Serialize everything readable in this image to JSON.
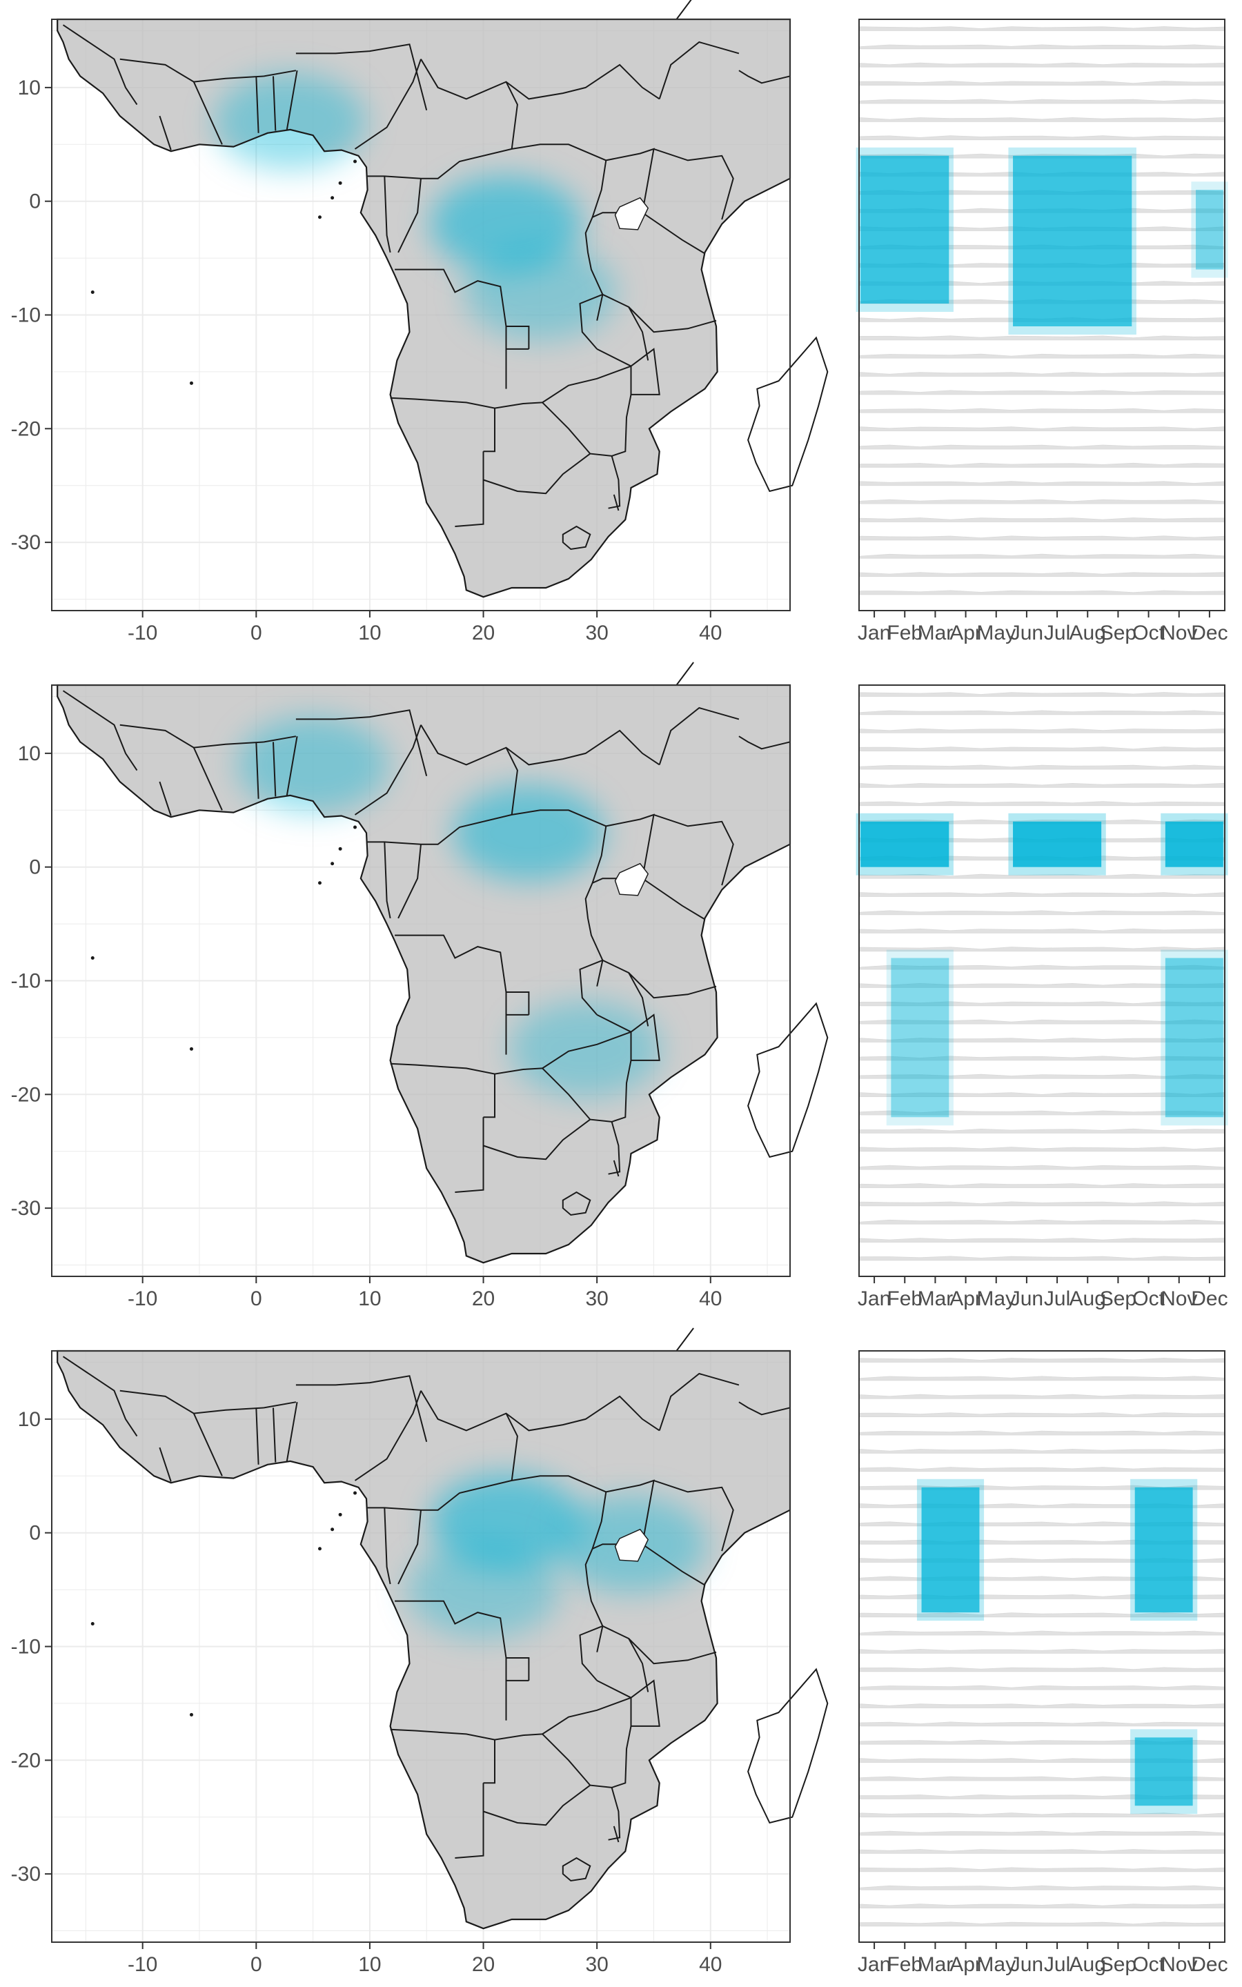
{
  "colors": {
    "accent": "#00b4d8",
    "land": "#bdbdbd",
    "border": "#1a1a1a",
    "grid": "#ebebeb",
    "panel_border": "#333333"
  },
  "chart_data": [
    {
      "type": "heatmap",
      "panel": "map",
      "row": 1,
      "xlim": [
        -18,
        47
      ],
      "ylim": [
        -36,
        16
      ],
      "x_ticks": [
        -10,
        0,
        10,
        20,
        30,
        40
      ],
      "y_ticks": [
        10,
        0,
        -10,
        -20,
        -30
      ],
      "x_tick_labels": [
        "-10",
        "0",
        "10",
        "20",
        "30",
        "40"
      ],
      "y_tick_labels": [
        "10",
        "0",
        "-10",
        "-20",
        "-30"
      ],
      "highlight_regions": [
        {
          "lon": 22,
          "lat": -2,
          "intensity": 0.55
        },
        {
          "lon": 3,
          "lat": 7,
          "intensity": 0.4
        },
        {
          "lon": 25,
          "lat": -8,
          "intensity": 0.35
        }
      ]
    },
    {
      "type": "heatmap",
      "panel": "season",
      "row": 1,
      "categories": [
        "Jan",
        "Feb",
        "Mar",
        "Apr",
        "May",
        "Jun",
        "Jul",
        "Aug",
        "Sep",
        "Oct",
        "Nov",
        "Dec"
      ],
      "ylim": [
        -36,
        16
      ],
      "high_cells": [
        {
          "month_start": 1,
          "month_end": 3,
          "lat_min": -9,
          "lat_max": 4,
          "intensity": 0.7
        },
        {
          "month_start": 6,
          "month_end": 9,
          "lat_min": -11,
          "lat_max": 4,
          "intensity": 0.7
        },
        {
          "month_start": 12,
          "month_end": 12,
          "lat_min": -6,
          "lat_max": 1,
          "intensity": 0.45
        }
      ]
    },
    {
      "type": "heatmap",
      "panel": "map",
      "row": 2,
      "xlim": [
        -18,
        47
      ],
      "ylim": [
        -36,
        16
      ],
      "x_ticks": [
        -10,
        0,
        10,
        20,
        30,
        40
      ],
      "y_ticks": [
        10,
        0,
        -10,
        -20,
        -30
      ],
      "x_tick_labels": [
        "-10",
        "0",
        "10",
        "20",
        "30",
        "40"
      ],
      "y_tick_labels": [
        "10",
        "0",
        "-10",
        "-20",
        "-30"
      ],
      "highlight_regions": [
        {
          "lon": 24,
          "lat": 3,
          "intensity": 0.5
        },
        {
          "lon": 5,
          "lat": 9,
          "intensity": 0.4
        },
        {
          "lon": 29,
          "lat": -16,
          "intensity": 0.35
        }
      ]
    },
    {
      "type": "heatmap",
      "panel": "season",
      "row": 2,
      "categories": [
        "Jan",
        "Feb",
        "Mar",
        "Apr",
        "May",
        "Jun",
        "Jul",
        "Aug",
        "Sep",
        "Oct",
        "Nov",
        "Dec"
      ],
      "ylim": [
        -36,
        16
      ],
      "high_cells": [
        {
          "month_start": 1,
          "month_end": 3,
          "lat_min": 0,
          "lat_max": 4,
          "intensity": 0.85
        },
        {
          "month_start": 6,
          "month_end": 8,
          "lat_min": 0,
          "lat_max": 4,
          "intensity": 0.85
        },
        {
          "month_start": 11,
          "month_end": 12,
          "lat_min": 0,
          "lat_max": 4,
          "intensity": 0.85
        },
        {
          "month_start": 2,
          "month_end": 3,
          "lat_min": -22,
          "lat_max": -8,
          "intensity": 0.4
        },
        {
          "month_start": 11,
          "month_end": 12,
          "lat_min": -22,
          "lat_max": -8,
          "intensity": 0.5
        }
      ]
    },
    {
      "type": "heatmap",
      "panel": "map",
      "row": 3,
      "xlim": [
        -18,
        47
      ],
      "ylim": [
        -36,
        16
      ],
      "x_ticks": [
        -10,
        0,
        10,
        20,
        30,
        40
      ],
      "y_ticks": [
        10,
        0,
        -10,
        -20,
        -30
      ],
      "x_tick_labels": [
        "-10",
        "0",
        "10",
        "20",
        "30",
        "40"
      ],
      "y_tick_labels": [
        "10",
        "0",
        "-10",
        "-20",
        "-30"
      ],
      "highlight_regions": [
        {
          "lon": 22,
          "lat": 1,
          "intensity": 0.55
        },
        {
          "lon": 33,
          "lat": -1,
          "intensity": 0.4
        },
        {
          "lon": 20,
          "lat": -5,
          "intensity": 0.35
        }
      ]
    },
    {
      "type": "heatmap",
      "panel": "season",
      "row": 3,
      "categories": [
        "Jan",
        "Feb",
        "Mar",
        "Apr",
        "May",
        "Jun",
        "Jul",
        "Aug",
        "Sep",
        "Oct",
        "Nov",
        "Dec"
      ],
      "ylim": [
        -36,
        16
      ],
      "high_cells": [
        {
          "month_start": 3,
          "month_end": 4,
          "lat_min": -7,
          "lat_max": 4,
          "intensity": 0.75
        },
        {
          "month_start": 10,
          "month_end": 11,
          "lat_min": -7,
          "lat_max": 4,
          "intensity": 0.75
        },
        {
          "month_start": 10,
          "month_end": 11,
          "lat_min": -24,
          "lat_max": -18,
          "intensity": 0.7
        }
      ]
    }
  ]
}
